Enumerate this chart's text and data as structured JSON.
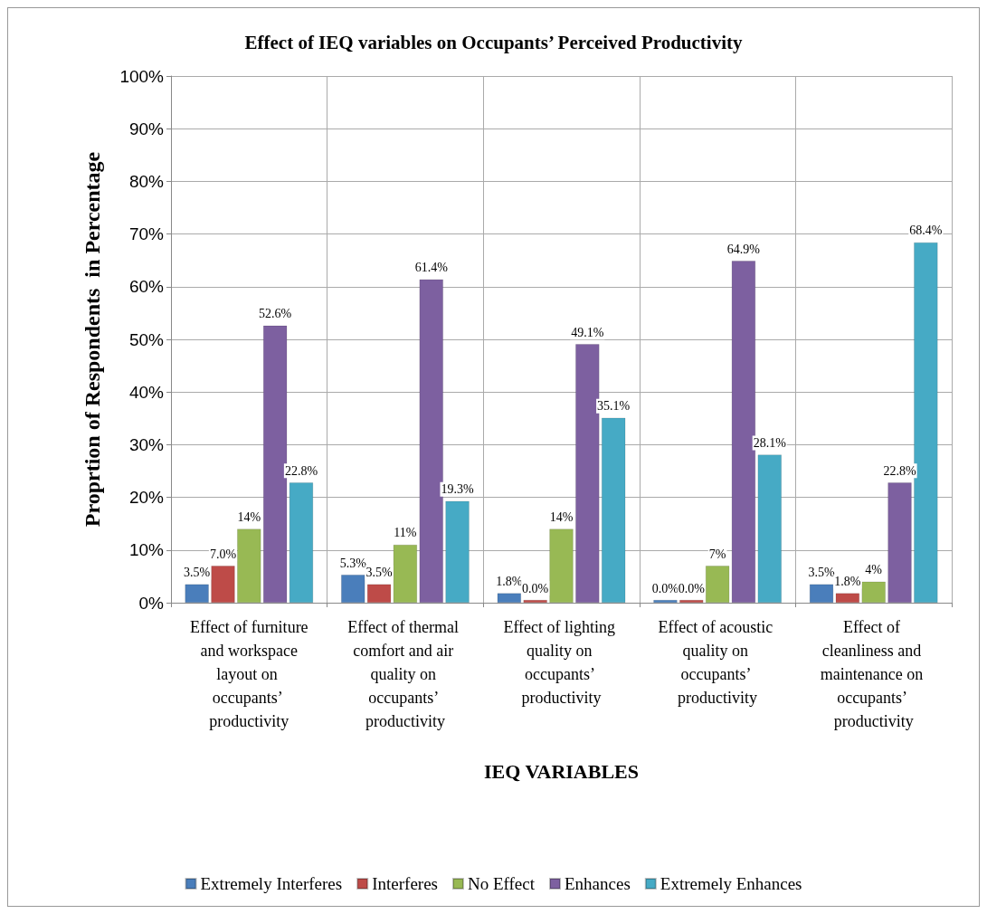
{
  "chart_data": {
    "type": "bar",
    "title": "Effect of IEQ variables on Occupants’ Perceived Productivity",
    "xlabel": "IEQ VARIABLES",
    "ylabel": "Proprtion of Respondents  in Percentage",
    "categories": [
      "Effect of furniture and workspace layout on occupants’ productivity",
      "Effect of thermal comfort and air quality on occupants’ productivity",
      "Effect of lighting quality on occupants’ productivity",
      "Effect of acoustic quality on occupants’ productivity",
      "Effect of cleanliness and maintenance on occupants’ productivity"
    ],
    "series": [
      {
        "name": "Extremely Interferes",
        "color": "#4a7ebb",
        "values": [
          3.5,
          5.3,
          1.8,
          0.0,
          3.5
        ],
        "value_labels": [
          "3.5%",
          "5.3%",
          "1.8%",
          "0.0%",
          "3.5%"
        ]
      },
      {
        "name": "Interferes",
        "color": "#be4b48",
        "values": [
          7.0,
          3.5,
          0.0,
          0.0,
          1.8
        ],
        "value_labels": [
          "7.0%",
          "3.5%",
          "0.0%",
          "0.0%",
          "1.8%"
        ]
      },
      {
        "name": "No Effect",
        "color": "#98b954",
        "values": [
          14,
          11,
          14,
          7,
          4
        ],
        "value_labels": [
          "14%",
          "11%",
          "14%",
          "7%",
          "4%"
        ]
      },
      {
        "name": "Enhances",
        "color": "#7d60a0",
        "values": [
          52.6,
          61.4,
          49.1,
          64.9,
          22.8
        ],
        "value_labels": [
          "52.6%",
          "61.4%",
          "49.1%",
          "64.9%",
          "22.8%"
        ]
      },
      {
        "name": "Extremely Enhances",
        "color": "#46aac5",
        "values": [
          22.8,
          19.3,
          35.1,
          28.1,
          68.4
        ],
        "value_labels": [
          "22.8%",
          "19.3%",
          "35.1%",
          "28.1%",
          "68.4%"
        ]
      }
    ],
    "ylim": [
      0,
      100
    ],
    "yticks": [
      {
        "value": 0,
        "label": "0%"
      },
      {
        "value": 10,
        "label": "10%"
      },
      {
        "value": 20,
        "label": "20%"
      },
      {
        "value": 30,
        "label": "30%"
      },
      {
        "value": 40,
        "label": "40%"
      },
      {
        "value": 50,
        "label": "50%"
      },
      {
        "value": 60,
        "label": "60%"
      },
      {
        "value": 70,
        "label": "70%"
      },
      {
        "value": 80,
        "label": "80%"
      },
      {
        "value": 90,
        "label": "90%"
      },
      {
        "value": 100,
        "label": "100%"
      }
    ],
    "grid": true,
    "legend": "bottom"
  }
}
